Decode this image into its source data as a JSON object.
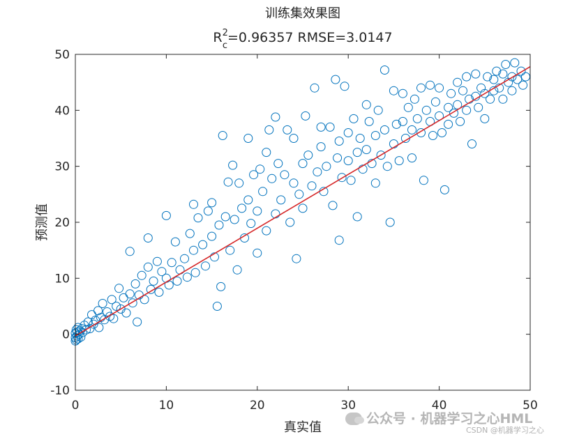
{
  "chart_data": {
    "type": "scatter",
    "title": "训练集效果图",
    "subtitle": "R_c^2=0.96357  RMSE=3.0147",
    "subtitle_parts": {
      "r": "R",
      "sup": "2",
      "sub": "c",
      "rest": "=0.96357  RMSE=3.0147"
    },
    "xlabel": "真实值",
    "ylabel": "预测值",
    "xlim": [
      0,
      50
    ],
    "ylim": [
      -10,
      50
    ],
    "xticks": [
      "0",
      "10",
      "20",
      "30",
      "40",
      "50"
    ],
    "yticks": [
      "-10",
      "0",
      "10",
      "20",
      "30",
      "40",
      "50"
    ],
    "grid": false,
    "legend": "none",
    "marker_color": "#0072BD",
    "line_color": "#D62728",
    "fit_line": {
      "x": [
        0,
        50
      ],
      "y": [
        -0.3,
        47.8
      ]
    },
    "series": [
      {
        "points": [
          [
            0.0,
            -1.2
          ],
          [
            0.0,
            -0.6
          ],
          [
            0.0,
            0.2
          ],
          [
            0.1,
            0.8
          ],
          [
            0.1,
            -1.0
          ],
          [
            0.2,
            0.4
          ],
          [
            0.2,
            -0.3
          ],
          [
            0.3,
            1.2
          ],
          [
            0.3,
            -0.8
          ],
          [
            0.4,
            0.0
          ],
          [
            0.5,
            0.6
          ],
          [
            0.6,
            -0.5
          ],
          [
            0.7,
            1.0
          ],
          [
            0.8,
            0.3
          ],
          [
            1.0,
            1.6
          ],
          [
            1.2,
            0.8
          ],
          [
            1.4,
            2.2
          ],
          [
            1.6,
            1.0
          ],
          [
            1.8,
            3.5
          ],
          [
            2.0,
            1.8
          ],
          [
            2.2,
            2.5
          ],
          [
            2.5,
            4.2
          ],
          [
            2.6,
            1.2
          ],
          [
            2.8,
            3.0
          ],
          [
            3.0,
            5.5
          ],
          [
            3.2,
            2.6
          ],
          [
            3.5,
            4.0
          ],
          [
            3.8,
            3.2
          ],
          [
            4.0,
            6.2
          ],
          [
            4.2,
            2.8
          ],
          [
            4.5,
            5.0
          ],
          [
            4.8,
            8.2
          ],
          [
            5.0,
            4.5
          ],
          [
            5.3,
            6.5
          ],
          [
            5.6,
            3.8
          ],
          [
            6.0,
            7.2
          ],
          [
            6.0,
            14.8
          ],
          [
            6.3,
            5.6
          ],
          [
            6.6,
            9.0
          ],
          [
            6.8,
            2.2
          ],
          [
            7.0,
            7.0
          ],
          [
            7.3,
            10.5
          ],
          [
            7.6,
            6.2
          ],
          [
            8.0,
            12.0
          ],
          [
            8.0,
            17.2
          ],
          [
            8.3,
            8.0
          ],
          [
            8.6,
            9.5
          ],
          [
            9.0,
            13.0
          ],
          [
            9.2,
            7.5
          ],
          [
            9.5,
            11.2
          ],
          [
            10.0,
            21.2
          ],
          [
            10.0,
            10.0
          ],
          [
            10.3,
            8.8
          ],
          [
            10.6,
            12.8
          ],
          [
            11.0,
            16.5
          ],
          [
            11.2,
            9.5
          ],
          [
            11.5,
            11.5
          ],
          [
            12.0,
            13.5
          ],
          [
            12.3,
            10.2
          ],
          [
            12.6,
            18.0
          ],
          [
            13.0,
            23.2
          ],
          [
            13.0,
            15.0
          ],
          [
            13.2,
            11.0
          ],
          [
            13.5,
            20.8
          ],
          [
            14.0,
            16.0
          ],
          [
            14.3,
            12.2
          ],
          [
            14.6,
            22.0
          ],
          [
            15.0,
            17.5
          ],
          [
            15.0,
            23.5
          ],
          [
            15.3,
            13.8
          ],
          [
            15.6,
            5.0
          ],
          [
            15.8,
            19.5
          ],
          [
            16.0,
            8.5
          ],
          [
            16.2,
            35.5
          ],
          [
            16.5,
            21.0
          ],
          [
            16.8,
            27.2
          ],
          [
            17.0,
            15.0
          ],
          [
            17.3,
            30.2
          ],
          [
            17.5,
            20.5
          ],
          [
            17.8,
            11.5
          ],
          [
            18.0,
            27.0
          ],
          [
            18.3,
            22.5
          ],
          [
            18.6,
            17.2
          ],
          [
            19.0,
            35.0
          ],
          [
            19.0,
            24.0
          ],
          [
            19.3,
            19.8
          ],
          [
            19.6,
            28.5
          ],
          [
            20.0,
            22.0
          ],
          [
            20.0,
            14.5
          ],
          [
            20.3,
            29.5
          ],
          [
            20.6,
            25.5
          ],
          [
            21.0,
            32.5
          ],
          [
            21.0,
            18.5
          ],
          [
            21.3,
            36.5
          ],
          [
            21.6,
            27.8
          ],
          [
            22.0,
            38.8
          ],
          [
            22.0,
            21.5
          ],
          [
            22.3,
            30.5
          ],
          [
            22.6,
            24.0
          ],
          [
            23.0,
            28.5
          ],
          [
            23.3,
            36.5
          ],
          [
            23.6,
            20.0
          ],
          [
            24.0,
            35.0
          ],
          [
            24.0,
            27.0
          ],
          [
            24.3,
            13.5
          ],
          [
            24.6,
            25.0
          ],
          [
            25.0,
            30.5
          ],
          [
            25.0,
            22.5
          ],
          [
            25.3,
            39.0
          ],
          [
            25.6,
            32.0
          ],
          [
            26.0,
            26.5
          ],
          [
            26.3,
            44.0
          ],
          [
            26.6,
            29.0
          ],
          [
            27.0,
            37.0
          ],
          [
            27.0,
            33.5
          ],
          [
            27.3,
            25.5
          ],
          [
            27.6,
            30.0
          ],
          [
            28.0,
            37.0
          ],
          [
            28.3,
            23.0
          ],
          [
            28.6,
            45.5
          ],
          [
            28.8,
            31.5
          ],
          [
            29.0,
            34.5
          ],
          [
            29.0,
            16.8
          ],
          [
            29.3,
            28.0
          ],
          [
            29.6,
            44.3
          ],
          [
            30.0,
            31.0
          ],
          [
            30.0,
            36.0
          ],
          [
            30.3,
            27.5
          ],
          [
            30.6,
            38.5
          ],
          [
            31.0,
            32.5
          ],
          [
            31.0,
            21.0
          ],
          [
            31.3,
            35.0
          ],
          [
            31.6,
            29.5
          ],
          [
            32.0,
            33.0
          ],
          [
            32.0,
            41.0
          ],
          [
            32.3,
            38.0
          ],
          [
            32.6,
            30.5
          ],
          [
            33.0,
            35.5
          ],
          [
            33.0,
            27.0
          ],
          [
            33.3,
            40.0
          ],
          [
            33.6,
            32.0
          ],
          [
            34.0,
            47.2
          ],
          [
            34.0,
            36.5
          ],
          [
            34.3,
            30.0
          ],
          [
            34.6,
            20.0
          ],
          [
            35.0,
            34.0
          ],
          [
            35.0,
            43.5
          ],
          [
            35.3,
            37.5
          ],
          [
            35.6,
            31.0
          ],
          [
            36.0,
            38.0
          ],
          [
            36.0,
            43.0
          ],
          [
            36.3,
            35.0
          ],
          [
            36.6,
            40.5
          ],
          [
            37.0,
            36.5
          ],
          [
            37.0,
            31.5
          ],
          [
            37.3,
            42.0
          ],
          [
            37.6,
            38.5
          ],
          [
            38.0,
            44.0
          ],
          [
            38.0,
            36.0
          ],
          [
            38.3,
            27.5
          ],
          [
            38.6,
            40.0
          ],
          [
            39.0,
            38.0
          ],
          [
            39.0,
            44.5
          ],
          [
            39.3,
            35.5
          ],
          [
            39.6,
            41.5
          ],
          [
            40.0,
            39.0
          ],
          [
            40.0,
            44.0
          ],
          [
            40.3,
            36.0
          ],
          [
            40.6,
            25.8
          ],
          [
            41.0,
            40.5
          ],
          [
            41.0,
            37.5
          ],
          [
            41.3,
            43.0
          ],
          [
            41.6,
            39.5
          ],
          [
            42.0,
            45.0
          ],
          [
            42.0,
            41.0
          ],
          [
            42.3,
            38.0
          ],
          [
            42.6,
            43.5
          ],
          [
            43.0,
            40.0
          ],
          [
            43.0,
            46.0
          ],
          [
            43.3,
            42.0
          ],
          [
            43.6,
            34.0
          ],
          [
            44.0,
            42.5
          ],
          [
            44.0,
            46.5
          ],
          [
            44.3,
            40.5
          ],
          [
            44.6,
            44.0
          ],
          [
            45.0,
            43.0
          ],
          [
            45.0,
            38.5
          ],
          [
            45.3,
            46.0
          ],
          [
            45.6,
            42.0
          ],
          [
            46.0,
            45.5
          ],
          [
            46.0,
            43.5
          ],
          [
            46.3,
            47.0
          ],
          [
            46.6,
            44.0
          ],
          [
            47.0,
            46.5
          ],
          [
            47.0,
            42.0
          ],
          [
            47.3,
            48.2
          ],
          [
            47.6,
            45.0
          ],
          [
            48.0,
            46.0
          ],
          [
            48.0,
            43.5
          ],
          [
            48.3,
            48.5
          ],
          [
            48.6,
            45.5
          ],
          [
            49.0,
            47.0
          ],
          [
            49.2,
            44.5
          ],
          [
            49.5,
            46.0
          ]
        ]
      }
    ]
  },
  "watermark": {
    "main": "公众号 · 机器学习之心HML",
    "sub": "CSDN @机器学习之心"
  }
}
